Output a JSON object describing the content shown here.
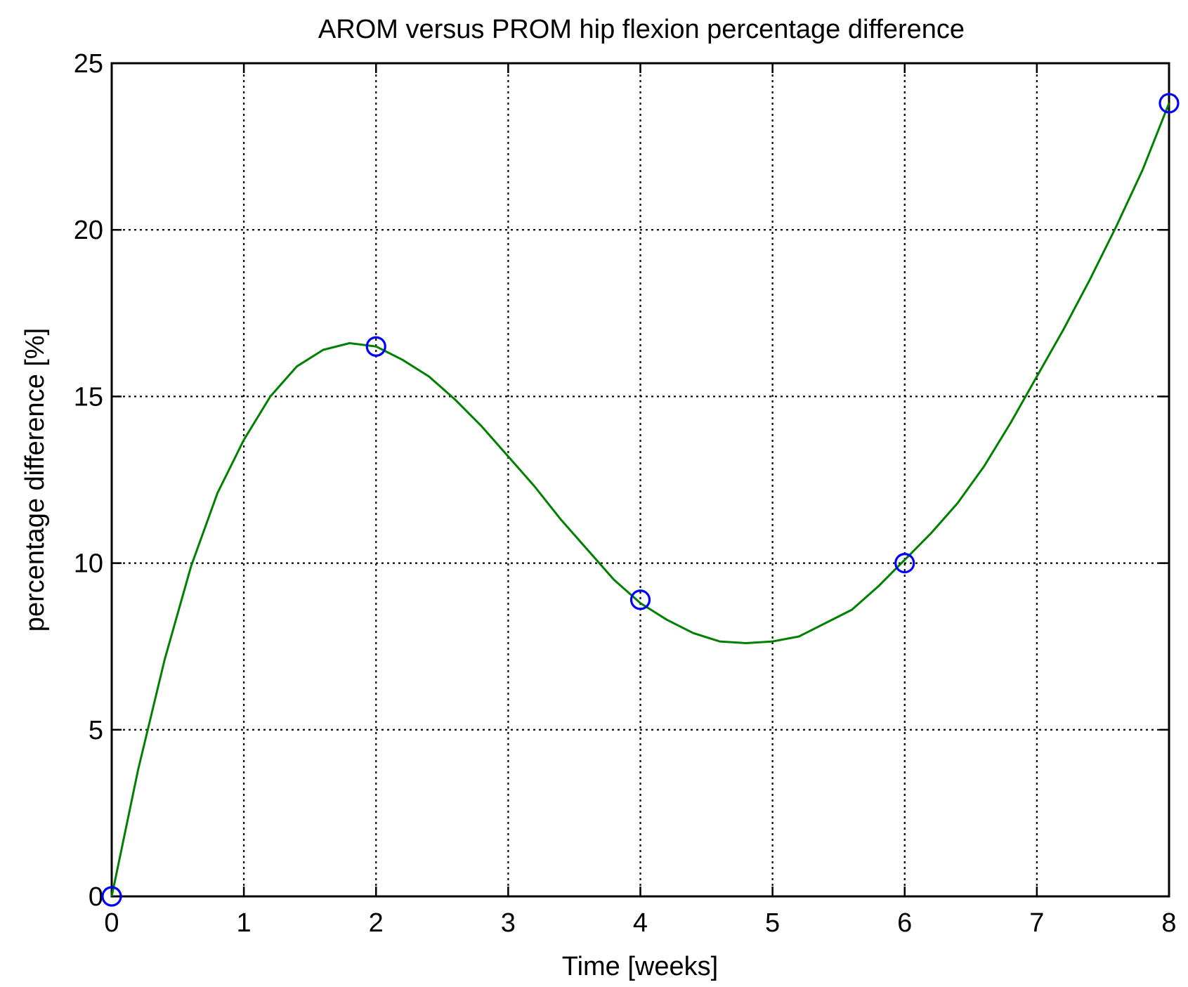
{
  "chart_data": {
    "type": "line",
    "title": "AROM versus PROM hip flexion percentage difference",
    "xlabel": "Time [weeks]",
    "ylabel": "percentage difference [%]",
    "xlim": [
      0,
      8
    ],
    "ylim": [
      0,
      25
    ],
    "xticks": [
      "0",
      "1",
      "2",
      "3",
      "4",
      "5",
      "6",
      "7",
      "8"
    ],
    "yticks": [
      "0",
      "5",
      "10",
      "15",
      "20",
      "25"
    ],
    "grid": true,
    "legend": "none",
    "series": [
      {
        "style": "line",
        "color": "#008000",
        "x": [
          0,
          0.2,
          0.4,
          0.6,
          0.8,
          1.0,
          1.2,
          1.4,
          1.6,
          1.8,
          2.0,
          2.2,
          2.4,
          2.6,
          2.8,
          3.0,
          3.2,
          3.4,
          3.6,
          3.8,
          4.0,
          4.2,
          4.4,
          4.6,
          4.8,
          5.0,
          5.2,
          5.4,
          5.6,
          5.8,
          6.0,
          6.2,
          6.4,
          6.6,
          6.8,
          7.0,
          7.2,
          7.4,
          7.6,
          7.8,
          8.0
        ],
        "y": [
          0,
          3.8,
          7.1,
          9.9,
          12.1,
          13.7,
          15.0,
          15.9,
          16.4,
          16.6,
          16.5,
          16.1,
          15.6,
          14.9,
          14.1,
          13.2,
          12.3,
          11.3,
          10.4,
          9.5,
          8.8,
          8.3,
          7.9,
          7.65,
          7.6,
          7.65,
          7.8,
          8.2,
          8.6,
          9.3,
          10.1,
          10.9,
          11.8,
          12.9,
          14.2,
          15.6,
          17.0,
          18.5,
          20.1,
          21.8,
          23.8
        ]
      },
      {
        "style": "markers",
        "marker": "circle",
        "color": "#0000ff",
        "x": [
          0,
          2,
          4,
          6,
          8
        ],
        "y": [
          0,
          16.5,
          8.9,
          10.0,
          23.8
        ]
      }
    ]
  }
}
